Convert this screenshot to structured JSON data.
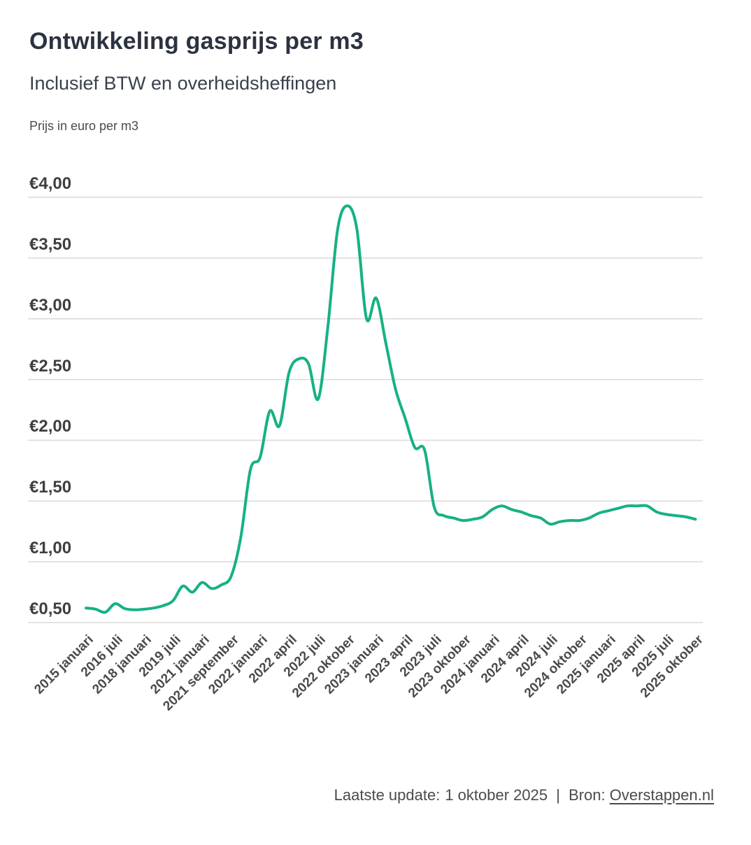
{
  "header": {
    "title": "Ontwikkeling gasprijs per m3",
    "subtitle": "Inclusief BTW en overheidsheffingen",
    "axis_unit_label": "Prijs in euro per m3"
  },
  "footer": {
    "update_label": "Laatste update:",
    "update_date": "1 oktober 2025",
    "separator": "|",
    "source_label": "Bron:",
    "source_link": "Overstappen.nl"
  },
  "chart_data": {
    "type": "line",
    "title": "Ontwikkeling gasprijs per m3",
    "subtitle": "Inclusief BTW en overheidsheffingen",
    "ylabel": "Prijs in euro per m3",
    "currency_format": "€#,##0.00 (Dutch, comma decimal)",
    "line_color": "#17b185",
    "grid": true,
    "gridline_color": "#dadada",
    "legend": false,
    "ylim": [
      0.5,
      4.0
    ],
    "y_tick_labels": [
      "€4,00",
      "€3,50",
      "€3,00",
      "€2,50",
      "€2,00",
      "€1,50",
      "€1,00",
      "€0,50"
    ],
    "x_tick_labels": [
      "2015 januari",
      "2016 juli",
      "2018 januari",
      "2019 juli",
      "2021 januari",
      "2021 september",
      "2022 januari",
      "2022 april",
      "2022 juli",
      "2022 oktober",
      "2023 januari",
      "2023 april",
      "2023 juli",
      "2023 oktober",
      "2024 januari",
      "2024 april",
      "2024 juli",
      "2024 oktober",
      "2025 januari",
      "2025 april",
      "2025 juli",
      "2025 oktober"
    ],
    "values_at_ticks": [
      0.62,
      0.66,
      0.61,
      0.68,
      0.83,
      0.88,
      1.86,
      2.56,
      2.34,
      3.93,
      3.17,
      2.18,
      1.45,
      1.34,
      1.43,
      1.41,
      1.31,
      1.34,
      1.42,
      1.46,
      1.39,
      1.35
    ],
    "x_ticks_every_n_points": 3,
    "n_points": 64,
    "values": [
      0.62,
      0.61,
      0.585,
      0.655,
      0.615,
      0.605,
      0.61,
      0.62,
      0.64,
      0.68,
      0.8,
      0.75,
      0.83,
      0.78,
      0.81,
      0.88,
      1.2,
      1.76,
      1.86,
      2.24,
      2.12,
      2.56,
      2.67,
      2.63,
      2.34,
      2.93,
      3.73,
      3.93,
      3.74,
      3.0,
      3.17,
      2.8,
      2.42,
      2.18,
      1.94,
      1.92,
      1.45,
      1.38,
      1.36,
      1.34,
      1.35,
      1.37,
      1.43,
      1.46,
      1.43,
      1.41,
      1.38,
      1.36,
      1.31,
      1.33,
      1.34,
      1.34,
      1.36,
      1.4,
      1.42,
      1.44,
      1.46,
      1.46,
      1.46,
      1.41,
      1.39,
      1.38,
      1.37,
      1.35
    ],
    "peak_value": 3.93,
    "peak_tick_label": "2022 oktober"
  }
}
